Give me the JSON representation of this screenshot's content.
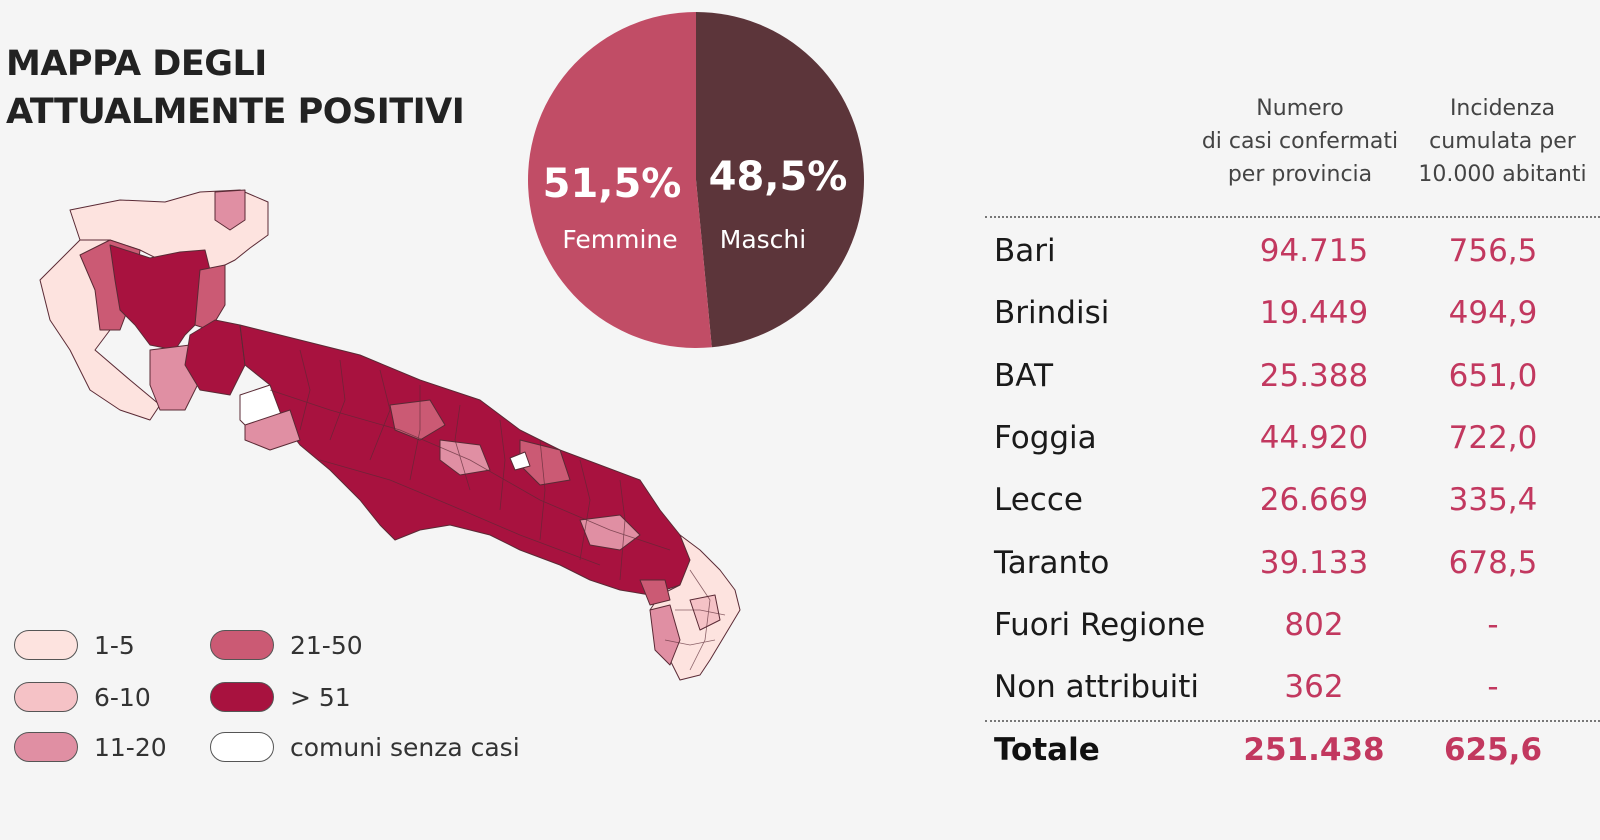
{
  "title": {
    "line1": "MAPPA DEGLI",
    "line2": "ATTUALMENTE POSITIVI"
  },
  "colors": {
    "c1_5": "#fde3df",
    "c6_10": "#f5c2c6",
    "c11_20": "#e08fa3",
    "c21_50": "#cb5a74",
    "c51": "#a8123f",
    "none": "#ffffff",
    "female": "#c14d66",
    "male": "#5c353a",
    "accent": "#c2385f"
  },
  "legend": [
    {
      "label": "1-5",
      "color": "#fde3df"
    },
    {
      "label": "6-10",
      "color": "#f5c2c6"
    },
    {
      "label": "11-20",
      "color": "#e08fa3"
    },
    {
      "label": "21-50",
      "color": "#cb5a74"
    },
    {
      "label": "> 51",
      "color": "#a8123f"
    },
    {
      "label": "comuni senza casi",
      "color": "#ffffff"
    }
  ],
  "chart_data": [
    {
      "type": "pie",
      "slices": [
        {
          "label": "Femmine",
          "percent_label": "51,5%",
          "value": 51.5,
          "color": "#c14d66"
        },
        {
          "label": "Maschi",
          "percent_label": "48,5%",
          "value": 48.5,
          "color": "#5c353a"
        }
      ]
    },
    {
      "type": "table",
      "columns": [
        "",
        "Numero di casi confermati per provincia",
        "Incidenza cumulata per 10.000 abitanti"
      ],
      "rows": [
        {
          "provincia": "Bari",
          "casi": "94.715",
          "incidenza": "756,5"
        },
        {
          "provincia": "Brindisi",
          "casi": "19.449",
          "incidenza": "494,9"
        },
        {
          "provincia": "BAT",
          "casi": "25.388",
          "incidenza": "651,0"
        },
        {
          "provincia": "Foggia",
          "casi": "44.920",
          "incidenza": "722,0"
        },
        {
          "provincia": "Lecce",
          "casi": "26.669",
          "incidenza": "335,4"
        },
        {
          "provincia": "Taranto",
          "casi": "39.133",
          "incidenza": "678,5"
        },
        {
          "provincia": "Fuori Regione",
          "casi": "802",
          "incidenza": "-"
        },
        {
          "provincia": "Non attribuiti",
          "casi": "362",
          "incidenza": "-"
        }
      ],
      "total": {
        "provincia": "Totale",
        "casi": "251.438",
        "incidenza": "625,6"
      }
    }
  ],
  "table": {
    "head1": [
      "Numero",
      "di casi confermati",
      "per provincia"
    ],
    "head2": [
      "Incidenza",
      "cumulata per",
      "10.000 abitanti"
    ]
  }
}
